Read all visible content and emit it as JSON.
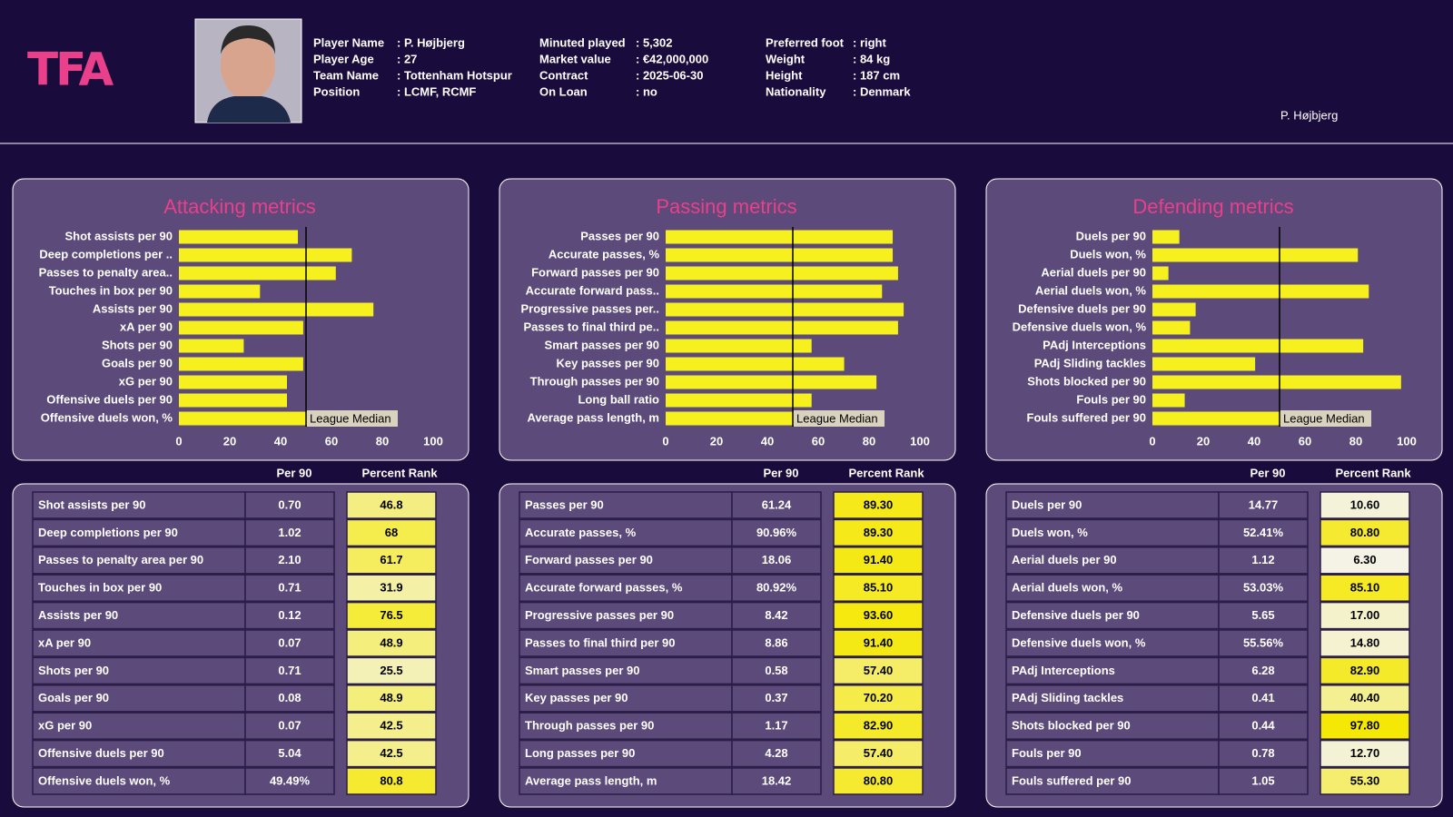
{
  "header": {
    "logo": "TFA",
    "name": "P. Højbjerg",
    "info": [
      [
        {
          "label": "Player Name",
          "value": ": P. Højbjerg"
        },
        {
          "label": "Player Age",
          "value": ": 27"
        },
        {
          "label": "Team Name",
          "value": ": Tottenham Hotspur"
        },
        {
          "label": "Position",
          "value": ": LCMF, RCMF"
        }
      ],
      [
        {
          "label": "Minuted played",
          "value": ": 5,302"
        },
        {
          "label": "Market value",
          "value": ": €42,000,000"
        },
        {
          "label": "Contract",
          "value": ": 2025-06-30"
        },
        {
          "label": "On Loan",
          "value": ": no"
        }
      ],
      [
        {
          "label": "Preferred foot",
          "value": ": right"
        },
        {
          "label": "Weight",
          "value": ": 84 kg"
        },
        {
          "label": "Height",
          "value": ": 187 cm"
        },
        {
          "label": "Nationality",
          "value": ": Denmark"
        }
      ]
    ]
  },
  "rank_colors": [
    "#f4f4f4",
    "#f5e800"
  ],
  "chart_data": [
    {
      "type": "barh",
      "title": "Attacking metrics",
      "color": "#f5f01e",
      "categories": [
        "Shot assists per 90",
        "Deep completions per ..",
        "Passes to penalty area..",
        "Touches in box per 90",
        "Assists per 90",
        "xA per 90",
        "Shots per 90",
        "Goals per 90",
        "xG per 90",
        "Offensive duels per 90",
        "Offensive duels won, %"
      ],
      "values": [
        46.8,
        68,
        61.7,
        31.9,
        76.5,
        48.9,
        25.5,
        48.9,
        42.5,
        42.5,
        80.8
      ],
      "xlim": [
        0,
        100
      ],
      "xticks": [
        0,
        20,
        40,
        60,
        80,
        100
      ],
      "median": {
        "value": 50,
        "label": "League Median"
      }
    },
    {
      "type": "barh",
      "title": "Passing metrics",
      "color": "#f5f01e",
      "categories": [
        "Passes per 90",
        "Accurate passes, %",
        "Forward passes per 90",
        "Accurate forward pass..",
        "Progressive passes per..",
        "Passes to final third pe..",
        "Smart passes per 90",
        "Key passes per 90",
        "Through passes per 90",
        "Long ball ratio",
        "Average pass length, m"
      ],
      "values": [
        89.3,
        89.3,
        91.4,
        85.1,
        93.6,
        91.4,
        57.4,
        70.2,
        82.9,
        57.4,
        80.8
      ],
      "xlim": [
        0,
        100
      ],
      "xticks": [
        0,
        20,
        40,
        60,
        80,
        100
      ],
      "median": {
        "value": 50,
        "label": "League Median"
      }
    },
    {
      "type": "barh",
      "title": "Defending metrics",
      "color": "#f5f01e",
      "categories": [
        "Duels per 90",
        "Duels won, %",
        "Aerial duels per 90",
        "Aerial duels won, %",
        "Defensive duels per 90",
        "Defensive duels won, %",
        "PAdj Interceptions",
        "PAdj Sliding tackles",
        "Shots blocked per 90",
        "Fouls per 90",
        "Fouls suffered per 90"
      ],
      "values": [
        10.6,
        80.8,
        6.3,
        85.1,
        17.0,
        14.8,
        82.9,
        40.4,
        97.8,
        12.7,
        55.3
      ],
      "xlim": [
        0,
        100
      ],
      "xticks": [
        0,
        20,
        40,
        60,
        80,
        100
      ],
      "median": {
        "value": 50,
        "label": "League Median"
      }
    }
  ],
  "tables": [
    {
      "columns": [
        "Per 90",
        "Percent Rank"
      ],
      "rows": [
        [
          "Shot assists per 90",
          "0.70",
          "46.8"
        ],
        [
          "Deep completions per 90",
          "1.02",
          "68"
        ],
        [
          "Passes to penalty area per 90",
          "2.10",
          "61.7"
        ],
        [
          "Touches in box per 90",
          "0.71",
          "31.9"
        ],
        [
          "Assists per 90",
          "0.12",
          "76.5"
        ],
        [
          "xA per 90",
          "0.07",
          "48.9"
        ],
        [
          "Shots per 90",
          "0.71",
          "25.5"
        ],
        [
          "Goals per 90",
          "0.08",
          "48.9"
        ],
        [
          "xG per 90",
          "0.07",
          "42.5"
        ],
        [
          "Offensive duels per 90",
          "5.04",
          "42.5"
        ],
        [
          "Offensive duels won, %",
          "49.49%",
          "80.8"
        ]
      ]
    },
    {
      "columns": [
        "Per 90",
        "Percent Rank"
      ],
      "rows": [
        [
          "Passes per 90",
          "61.24",
          "89.30"
        ],
        [
          "Accurate passes, %",
          "90.96%",
          "89.30"
        ],
        [
          "Forward passes per 90",
          "18.06",
          "91.40"
        ],
        [
          "Accurate forward passes, %",
          "80.92%",
          "85.10"
        ],
        [
          "Progressive passes per 90",
          "8.42",
          "93.60"
        ],
        [
          "Passes to final third per 90",
          "8.86",
          "91.40"
        ],
        [
          "Smart passes per 90",
          "0.58",
          "57.40"
        ],
        [
          "Key passes per 90",
          "0.37",
          "70.20"
        ],
        [
          "Through passes per 90",
          "1.17",
          "82.90"
        ],
        [
          "Long passes per 90",
          "4.28",
          "57.40"
        ],
        [
          "Average pass length, m",
          "18.42",
          "80.80"
        ]
      ]
    },
    {
      "columns": [
        "Per 90",
        "Percent Rank"
      ],
      "rows": [
        [
          "Duels per 90",
          "14.77",
          "10.60"
        ],
        [
          "Duels won, %",
          "52.41%",
          "80.80"
        ],
        [
          "Aerial duels per 90",
          "1.12",
          "6.30"
        ],
        [
          "Aerial duels won, %",
          "53.03%",
          "85.10"
        ],
        [
          "Defensive duels per 90",
          "5.65",
          "17.00"
        ],
        [
          "Defensive duels won, %",
          "55.56%",
          "14.80"
        ],
        [
          "PAdj Interceptions",
          "6.28",
          "82.90"
        ],
        [
          "PAdj Sliding tackles",
          "0.41",
          "40.40"
        ],
        [
          "Shots blocked per 90",
          "0.44",
          "97.80"
        ],
        [
          "Fouls per 90",
          "0.78",
          "12.70"
        ],
        [
          "Fouls suffered per 90",
          "1.05",
          "55.30"
        ]
      ]
    }
  ]
}
